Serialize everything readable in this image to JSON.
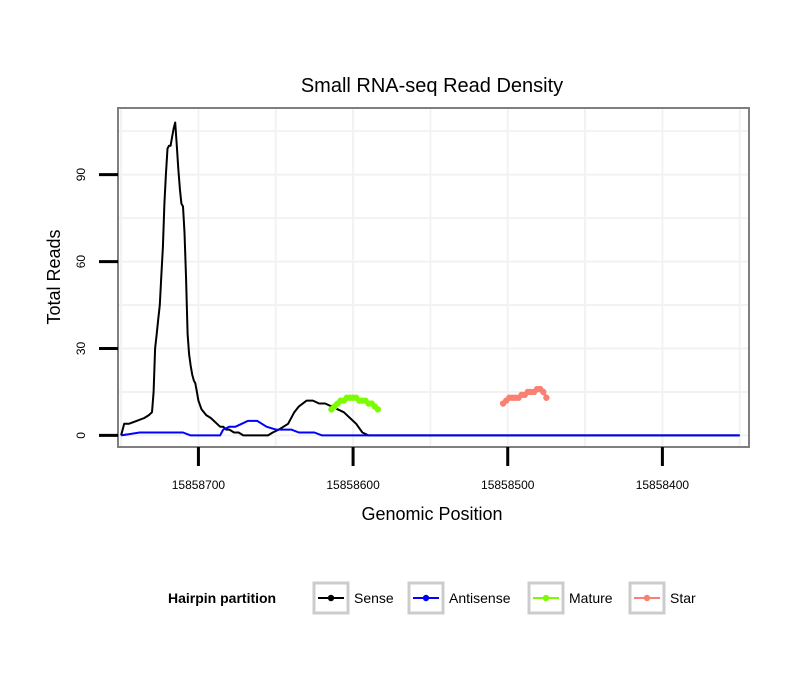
{
  "chart_data": {
    "type": "line",
    "title": "Small RNA-seq Read Density",
    "xlabel": "Genomic Position",
    "ylabel": "Total Reads",
    "x_reversed": true,
    "xlim": [
      15858752,
      15858344
    ],
    "ylim": [
      -4,
      113
    ],
    "x_ticks": [
      15858700,
      15858600,
      15858500,
      15858400
    ],
    "x_tick_labels": [
      "15858700",
      "15858600",
      "15858500",
      "15858400"
    ],
    "y_ticks": [
      0,
      30,
      60,
      90
    ],
    "y_tick_labels": [
      "0",
      "30",
      "60",
      "90"
    ],
    "grid": true,
    "legend": {
      "title": "Hairpin partition",
      "position": "bottom",
      "entries": [
        "Sense",
        "Antisense",
        "Mature",
        "Star"
      ]
    },
    "colors": {
      "Sense": "#000000",
      "Antisense": "#0000ff",
      "Mature": "#7cfc00",
      "Star": "#fa8072",
      "panel_border": "#7f7f7f",
      "grid": "#f2f2f2"
    },
    "series": [
      {
        "name": "Sense",
        "x": [
          15858750,
          15858748,
          15858745,
          15858740,
          15858735,
          15858732,
          15858730,
          15858729,
          15858728,
          15858727,
          15858726,
          15858725,
          15858724,
          15858723,
          15858722,
          15858721,
          15858720,
          15858719,
          15858718,
          15858717,
          15858716,
          15858715,
          15858714,
          15858713,
          15858712,
          15858711,
          15858710,
          15858709,
          15858708,
          15858707,
          15858706,
          15858705,
          15858704,
          15858703,
          15858702,
          15858701,
          15858700,
          15858698,
          15858695,
          15858692,
          15858690,
          15858688,
          15858686,
          15858684,
          15858682,
          15858680,
          15858677,
          15858674,
          15858671,
          15858668,
          15858665,
          15858662,
          15858658,
          15858655,
          15858652,
          15858648,
          15858645,
          15858642,
          15858638,
          15858635,
          15858630,
          15858626,
          15858622,
          15858618,
          15858614,
          15858610,
          15858606,
          15858602,
          15858598,
          15858594,
          15858590,
          15858588,
          15858586,
          15858584,
          15858582,
          15858580,
          15858578,
          15858576,
          15858574,
          15858572,
          15858570,
          15858568,
          15858566,
          15858564,
          15858562,
          15858560,
          15858558,
          15858556,
          15858554,
          15858552,
          15858550,
          15858548,
          15858546,
          15858544,
          15858542,
          15858540,
          15858538,
          15858535,
          15858532,
          15858528,
          15858524,
          15858520,
          15858516,
          15858512,
          15858508,
          15858504,
          15858500,
          15858496,
          15858492,
          15858488,
          15858484,
          15858480,
          15858476,
          15858472,
          15858468,
          15858464,
          15858460,
          15858456,
          15858452,
          15858448,
          15858444,
          15858440,
          15858435,
          15858430,
          15858425,
          15858420,
          15858415,
          15858410,
          15858405,
          15858400,
          15858395,
          15858390,
          15858385,
          15858380,
          15858375,
          15858370,
          15858365,
          15858360,
          15858355,
          15858350
        ],
        "y": [
          0,
          4,
          4,
          5,
          6,
          7,
          8,
          15,
          30,
          35,
          40,
          45,
          55,
          65,
          80,
          90,
          99,
          100,
          100,
          103,
          106,
          108,
          100,
          92,
          85,
          80,
          79,
          70,
          55,
          35,
          28,
          24,
          21,
          19,
          18,
          15,
          12,
          9,
          7,
          6,
          5,
          4,
          3,
          3,
          2,
          2,
          1,
          1,
          0,
          0,
          0,
          0,
          0,
          0,
          1,
          2,
          3,
          4,
          8,
          10,
          12,
          12,
          11,
          11,
          10,
          9,
          8,
          6,
          4,
          1,
          0,
          0,
          0,
          0,
          0,
          0,
          0,
          0,
          0,
          0,
          0,
          0,
          0,
          0,
          0,
          0,
          0,
          0,
          0,
          0,
          0,
          0,
          0,
          0,
          0,
          0,
          0,
          0,
          0,
          0,
          0,
          0,
          0,
          0,
          0,
          0,
          0,
          0,
          0,
          0,
          0,
          0,
          0,
          0,
          0,
          0,
          0,
          0,
          0,
          0,
          0,
          0,
          0,
          0,
          0,
          0,
          0,
          0,
          0,
          0,
          0,
          0,
          0,
          0,
          0,
          0,
          0,
          0,
          0,
          0
        ]
      },
      {
        "name": "Antisense",
        "x": [
          15858750,
          15858738,
          15858736,
          15858710,
          15858705,
          15858700,
          15858695,
          15858690,
          15858686,
          15858684,
          15858680,
          15858676,
          15858672,
          15858668,
          15858662,
          15858656,
          15858650,
          15858645,
          15858640,
          15858635,
          15858630,
          15858625,
          15858620,
          15858615,
          15858610,
          15858605,
          15858600,
          15858595,
          15858590,
          15858585,
          15858580,
          15858575,
          15858570,
          15858565,
          15858560,
          15858555,
          15858550,
          15858545,
          15858540,
          15858535,
          15858530,
          15858525,
          15858520,
          15858515,
          15858510,
          15858505,
          15858500,
          15858495,
          15858490,
          15858485,
          15858480,
          15858475,
          15858470,
          15858465,
          15858460,
          15858455,
          15858450,
          15858445,
          15858440,
          15858435,
          15858430,
          15858425,
          15858420,
          15858415,
          15858410,
          15858405,
          15858400,
          15858395,
          15858390,
          15858385,
          15858380,
          15858375,
          15858370,
          15858365,
          15858360,
          15858355,
          15858350
        ],
        "y": [
          0,
          1,
          1,
          1,
          0,
          0,
          0,
          0,
          0,
          2,
          3,
          3,
          4,
          5,
          5,
          3,
          2,
          2,
          2,
          1,
          1,
          1,
          0,
          0,
          0,
          0,
          0,
          0,
          0,
          0,
          0,
          0,
          0,
          0,
          0,
          0,
          0,
          0,
          0,
          0,
          0,
          0,
          0,
          0,
          0,
          0,
          0,
          0,
          0,
          0,
          0,
          0,
          0,
          0,
          0,
          0,
          0,
          0,
          0,
          0,
          0,
          0,
          0,
          0,
          0,
          0,
          0,
          0,
          0,
          0,
          0,
          0,
          0,
          0,
          0,
          0,
          0
        ]
      },
      {
        "name": "Mature",
        "x": [
          15858614,
          15858612,
          15858610,
          15858608,
          15858606,
          15858604,
          15858602,
          15858600,
          15858598,
          15858596,
          15858594,
          15858592,
          15858590,
          15858588,
          15858586,
          15858584
        ],
        "y": [
          9,
          10,
          11,
          12,
          12,
          13,
          13,
          13,
          13,
          12,
          12,
          12,
          11,
          11,
          10,
          9
        ]
      },
      {
        "name": "Star",
        "x": [
          15858503,
          15858501,
          15858499,
          15858497,
          15858495,
          15858493,
          15858491,
          15858489,
          15858487,
          15858485,
          15858483,
          15858481,
          15858479,
          15858477,
          15858475
        ],
        "y": [
          11,
          12,
          13,
          13,
          13,
          13,
          14,
          14,
          15,
          15,
          15,
          16,
          16,
          15,
          13
        ]
      }
    ]
  }
}
